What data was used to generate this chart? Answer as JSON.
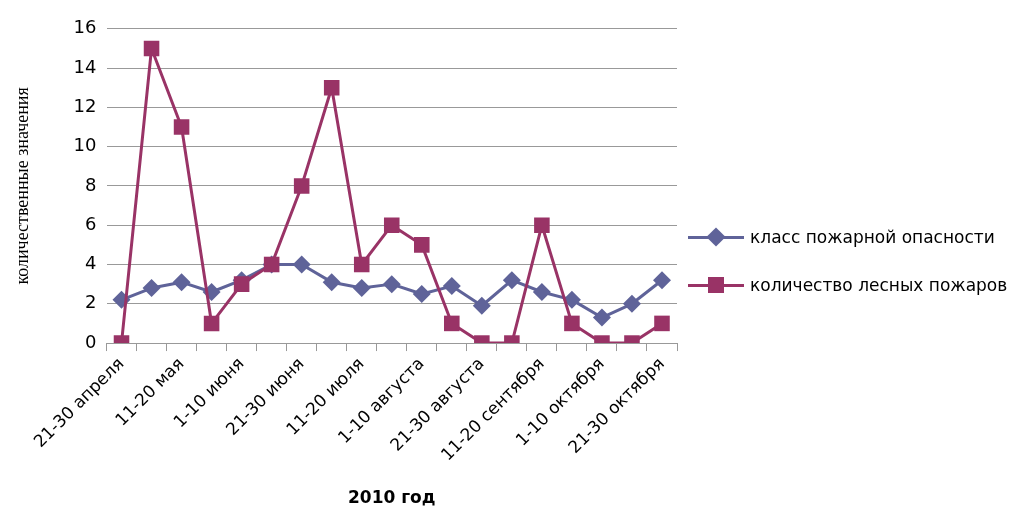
{
  "chart_data": {
    "type": "line",
    "xlabel": "2010 год",
    "ylabel": "количественные значения",
    "categories": [
      "21-30 апреля",
      null,
      "11-20 мая",
      null,
      "1-10 июня",
      null,
      "21-30 июня",
      null,
      "11-20 июля",
      null,
      "1-10 августа",
      null,
      "21-30 августа",
      null,
      "11-20 сентября",
      null,
      "1-10 октября",
      null,
      "21-30 октября"
    ],
    "series": [
      {
        "name": "класс пожарной опасности",
        "color": "#5f6399",
        "marker": "diamond",
        "values": [
          2.2,
          2.8,
          3.1,
          2.6,
          3.2,
          4.0,
          4.0,
          3.1,
          2.8,
          3.0,
          2.5,
          2.9,
          1.9,
          3.2,
          2.6,
          2.2,
          1.3,
          2.0,
          3.2
        ]
      },
      {
        "name": "количество лесных пожаров",
        "color": "#993366",
        "marker": "square",
        "values": [
          0,
          15,
          11,
          1,
          3,
          4,
          8,
          13,
          4,
          6,
          5,
          1,
          0,
          0,
          6,
          1,
          0,
          0,
          1
        ]
      }
    ],
    "ylim": [
      0,
      16
    ],
    "yticks": [
      0,
      2,
      4,
      6,
      8,
      10,
      12,
      14,
      16
    ],
    "grid": "y",
    "legend": "right"
  }
}
